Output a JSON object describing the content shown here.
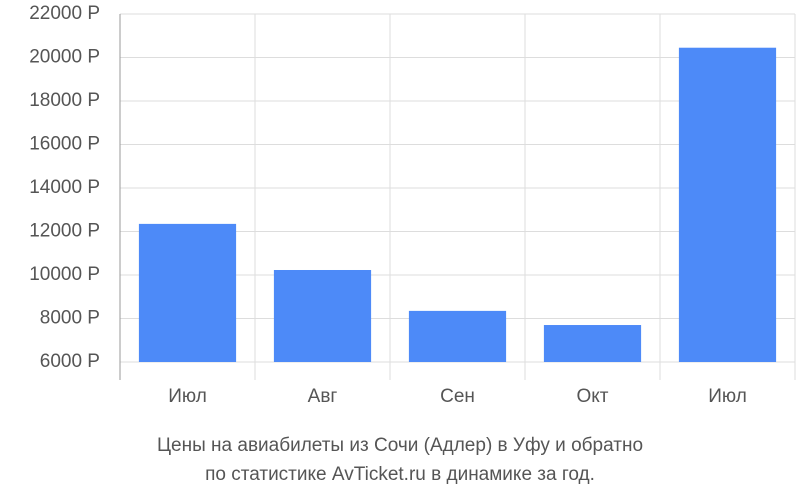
{
  "chart_data": {
    "type": "bar",
    "title": "Цены на авиабилеты из Сочи (Адлер) в Уфу и обратно",
    "subtitle": "по статистике AvTicket.ru в динамике за год.",
    "categories": [
      "Июл",
      "Авг",
      "Сен",
      "Окт",
      "Июл"
    ],
    "values": [
      12350,
      10230,
      8350,
      7700,
      20450
    ],
    "color": "#4d8af8",
    "ylim": [
      6000,
      22000
    ],
    "yticks": [
      {
        "value": 6000,
        "label": "6000 Р"
      },
      {
        "value": 8000,
        "label": "8000 Р"
      },
      {
        "value": 10000,
        "label": "10000 Р"
      },
      {
        "value": 12000,
        "label": "12000 Р"
      },
      {
        "value": 14000,
        "label": "14000 Р"
      },
      {
        "value": 16000,
        "label": "16000 Р"
      },
      {
        "value": 18000,
        "label": "18000 Р"
      },
      {
        "value": 20000,
        "label": "20000 Р"
      },
      {
        "value": 22000,
        "label": "22000 Р"
      }
    ],
    "grid": true
  }
}
